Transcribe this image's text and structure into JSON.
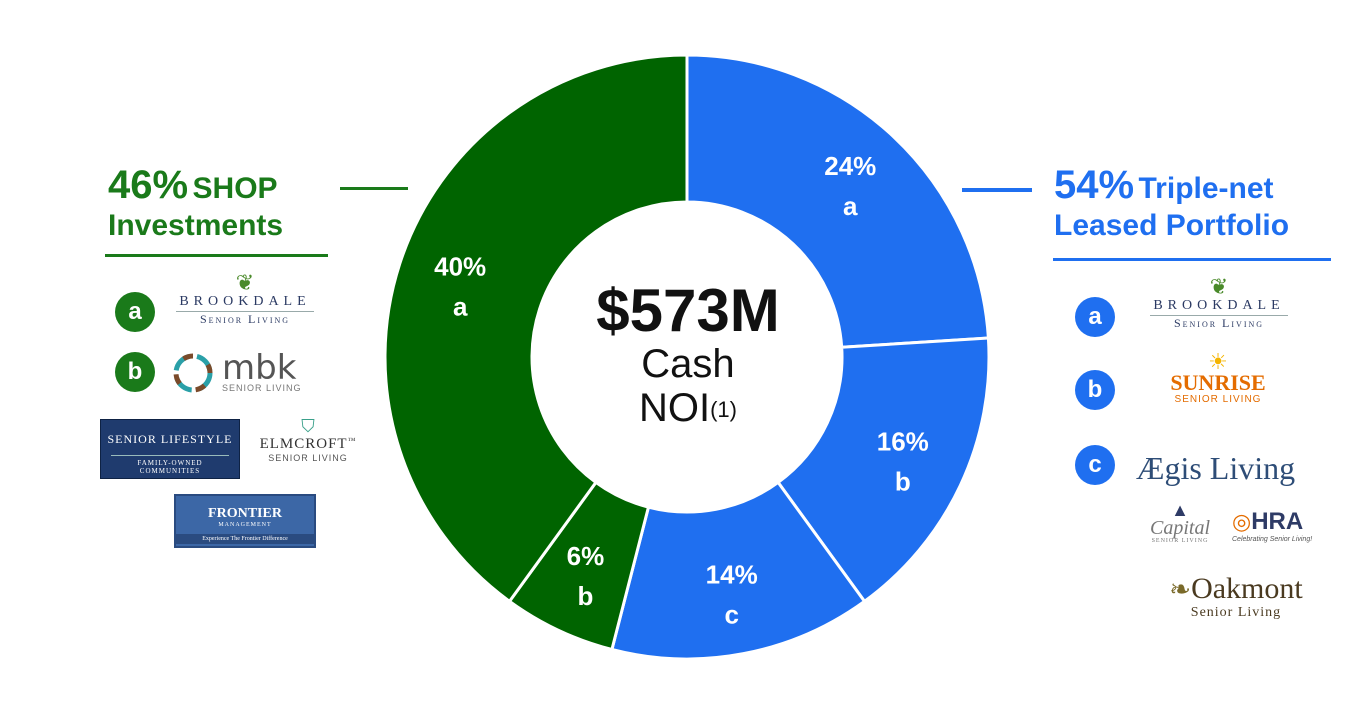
{
  "left_group": {
    "pct": "46%",
    "title_line1": "SHOP",
    "title_line2": "Investments",
    "color": "#1a7a1a",
    "operators": [
      {
        "badge": "a",
        "logo_text": "BROOKDALE",
        "logo_sub": "Senior Living",
        "icon": "leaf-icon"
      },
      {
        "badge": "b",
        "logo_text": "mbk",
        "logo_sub": "SENIOR LIVING",
        "icon": "mbk-ring-icon"
      },
      {
        "logo_text": "SENIOR LIFESTYLE",
        "logo_sub": "FAMILY-OWNED COMMUNITIES"
      },
      {
        "logo_text": "ELMCROFT",
        "logo_mark": "™",
        "logo_sub": "SENIOR LIVING",
        "icon": "shield-icon"
      },
      {
        "logo_text": "FRONTIER",
        "logo_sub": "MANAGEMENT",
        "logo_tagline": "Experience The Frontier Difference"
      }
    ]
  },
  "right_group": {
    "pct": "54%",
    "title_line1": "Triple-net",
    "title_line2": "Leased Portfolio",
    "color": "#1f6ff0",
    "operators": [
      {
        "badge": "a",
        "logo_text": "BROOKDALE",
        "logo_sub": "Senior Living",
        "icon": "leaf-icon"
      },
      {
        "badge": "b",
        "logo_text": "SUNRISE",
        "logo_sub": "SENIOR LIVING",
        "icon": "sun-icon"
      },
      {
        "badge": "c",
        "logo_text": "Ægis Living"
      },
      {
        "logo_text": "Capital",
        "logo_sub": "SENIOR LIVING",
        "icon": "triangle-icon"
      },
      {
        "logo_text": "HRA",
        "logo_sub": "Celebrating Senior Living!",
        "icon": "hra-figure-icon"
      },
      {
        "logo_text": "Oakmont",
        "logo_sub": "Senior Living",
        "icon": "oak-leaf-icon"
      }
    ]
  },
  "center": {
    "amount": "$573M",
    "line1": "Cash",
    "line2": "NOI",
    "footnote": "(1)"
  },
  "chart_data": {
    "type": "pie",
    "variant": "donut",
    "slices": [
      {
        "pct_label": "24%",
        "letter": "a",
        "value": 24,
        "group": "Triple-net Leased Portfolio",
        "color": "#1f6ff0"
      },
      {
        "pct_label": "16%",
        "letter": "b",
        "value": 16,
        "group": "Triple-net Leased Portfolio",
        "color": "#1f6ff0"
      },
      {
        "pct_label": "14%",
        "letter": "c",
        "value": 14,
        "group": "Triple-net Leased Portfolio",
        "color": "#1f6ff0"
      },
      {
        "pct_label": "6%",
        "letter": "b",
        "value": 6,
        "group": "SHOP Investments",
        "color": "#006400"
      },
      {
        "pct_label": "40%",
        "letter": "a",
        "value": 40,
        "group": "SHOP Investments",
        "color": "#006400"
      }
    ]
  }
}
